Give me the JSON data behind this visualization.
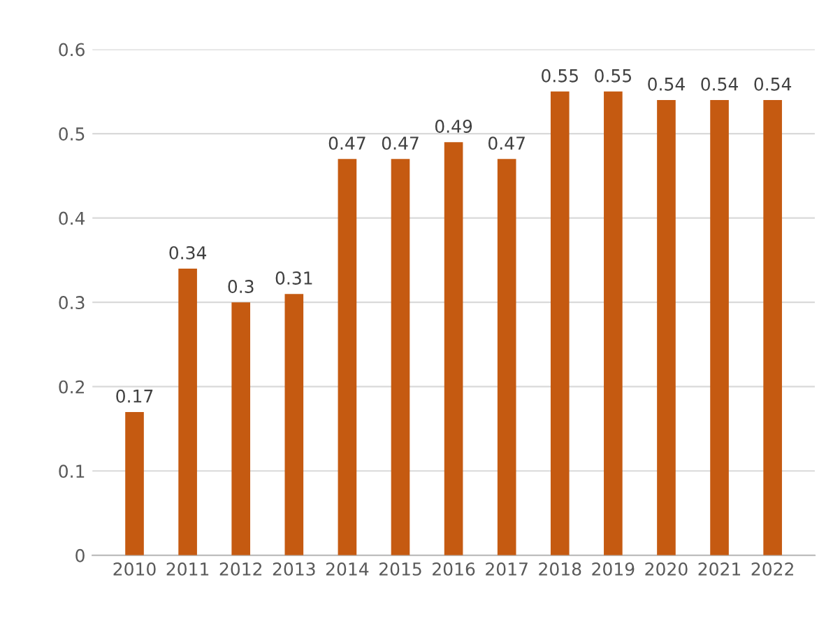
{
  "chart_data": {
    "type": "bar",
    "categories": [
      "2010",
      "2011",
      "2012",
      "2013",
      "2014",
      "2015",
      "2016",
      "2017",
      "2018",
      "2019",
      "2020",
      "2021",
      "2022"
    ],
    "values": [
      0.17,
      0.34,
      0.3,
      0.31,
      0.47,
      0.47,
      0.49,
      0.47,
      0.55,
      0.55,
      0.54,
      0.54,
      0.54
    ],
    "color": "#c55a11",
    "ylim": [
      0,
      0.6
    ],
    "yticks": [
      {
        "value": 0,
        "label": "0"
      },
      0.1,
      0.2,
      0.3,
      0.4,
      0.5,
      0.6
    ],
    "grid": "y",
    "data_labels": true
  }
}
